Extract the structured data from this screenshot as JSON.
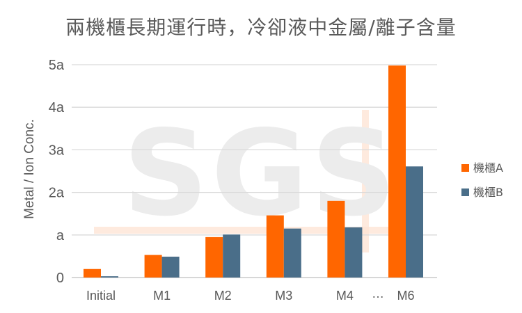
{
  "chart_data": {
    "type": "bar",
    "title": "兩機櫃長期運行時，冷卻液中金屬/離子含量",
    "xlabel": "",
    "ylabel": "Metal / Ion Conc.",
    "categories": [
      "Initial",
      "M1",
      "M2",
      "M3",
      "M4",
      "M6"
    ],
    "ellipsis_label": "…",
    "y_ticks": [
      {
        "value": 0,
        "label": "0"
      },
      {
        "value": 1,
        "label": "a"
      },
      {
        "value": 2,
        "label": "2a"
      },
      {
        "value": 3,
        "label": "3a"
      },
      {
        "value": 4,
        "label": "4a"
      },
      {
        "value": 5,
        "label": "5a"
      }
    ],
    "ylim": [
      0,
      5
    ],
    "grid": true,
    "legend_position": "right",
    "series": [
      {
        "name": "機櫃A",
        "color": "#FF6600",
        "values": [
          0.2,
          0.53,
          0.95,
          1.46,
          1.8,
          4.98
        ]
      },
      {
        "name": "機櫃B",
        "color": "#4A6E89",
        "values": [
          0.03,
          0.49,
          1.01,
          1.15,
          1.18,
          2.61
        ]
      }
    ],
    "watermark": "SGS"
  }
}
